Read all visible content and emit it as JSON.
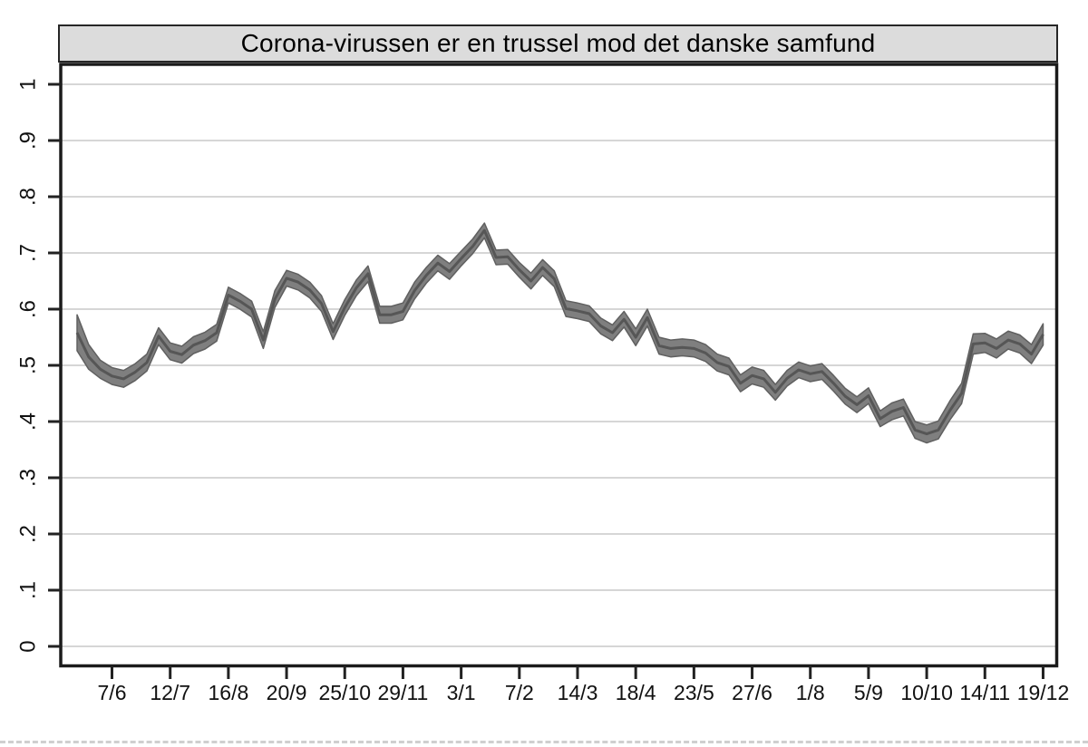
{
  "chart_data": {
    "type": "line",
    "title": "Corona-virussen er en trussel mod det danske samfund",
    "subtitle": "",
    "n_points": 84,
    "x_tick_indices": [
      3,
      8,
      13,
      18,
      23,
      28,
      33,
      38,
      43,
      48,
      53,
      58,
      63,
      68,
      73,
      78,
      83
    ],
    "x_tick_labels": [
      "7/6",
      "12/7",
      "16/8",
      "20/9",
      "25/10",
      "29/11",
      "3/1",
      "7/2",
      "14/3",
      "18/4",
      "23/5",
      "27/6",
      "1/8",
      "5/9",
      "10/10",
      "14/11",
      "19/12"
    ],
    "y_tick_labels": [
      "0",
      ".1",
      ".2",
      ".3",
      ".4",
      ".5",
      ".6",
      ".7",
      ".8",
      ".9",
      "1"
    ],
    "y_tick_values": [
      0,
      0.1,
      0.2,
      0.3,
      0.4,
      0.5,
      0.6,
      0.7,
      0.8,
      0.9,
      1
    ],
    "ylim": [
      0,
      1
    ],
    "grid": "horizontal",
    "legend": "none",
    "series": [
      {
        "name": "point-estimate",
        "values": [
          0.558,
          0.515,
          0.493,
          0.481,
          0.476,
          0.488,
          0.505,
          0.552,
          0.525,
          0.519,
          0.536,
          0.544,
          0.558,
          0.625,
          0.614,
          0.6,
          0.545,
          0.618,
          0.655,
          0.648,
          0.634,
          0.61,
          0.56,
          0.603,
          0.638,
          0.663,
          0.59,
          0.59,
          0.596,
          0.633,
          0.66,
          0.682,
          0.667,
          0.69,
          0.712,
          0.74,
          0.692,
          0.693,
          0.67,
          0.65,
          0.674,
          0.654,
          0.601,
          0.597,
          0.592,
          0.57,
          0.558,
          0.582,
          0.55,
          0.585,
          0.535,
          0.53,
          0.532,
          0.53,
          0.522,
          0.505,
          0.498,
          0.468,
          0.482,
          0.476,
          0.452,
          0.477,
          0.492,
          0.485,
          0.489,
          0.468,
          0.445,
          0.43,
          0.446,
          0.405,
          0.418,
          0.425,
          0.385,
          0.378,
          0.385,
          0.42,
          0.45,
          0.538,
          0.54,
          0.53,
          0.545,
          0.538,
          0.52,
          0.555
        ]
      },
      {
        "name": "confidence-band-halfwidth",
        "values": [
          0.032,
          0.022,
          0.016,
          0.015,
          0.015,
          0.015,
          0.015,
          0.015,
          0.015,
          0.015,
          0.015,
          0.015,
          0.015,
          0.014,
          0.014,
          0.014,
          0.015,
          0.015,
          0.014,
          0.014,
          0.014,
          0.014,
          0.014,
          0.014,
          0.014,
          0.014,
          0.015,
          0.015,
          0.015,
          0.015,
          0.014,
          0.014,
          0.014,
          0.013,
          0.013,
          0.013,
          0.013,
          0.013,
          0.013,
          0.014,
          0.014,
          0.014,
          0.014,
          0.014,
          0.014,
          0.014,
          0.014,
          0.014,
          0.015,
          0.015,
          0.015,
          0.015,
          0.015,
          0.015,
          0.015,
          0.015,
          0.015,
          0.015,
          0.015,
          0.015,
          0.014,
          0.014,
          0.014,
          0.014,
          0.014,
          0.014,
          0.014,
          0.014,
          0.014,
          0.014,
          0.015,
          0.015,
          0.015,
          0.016,
          0.016,
          0.017,
          0.018,
          0.018,
          0.017,
          0.017,
          0.016,
          0.016,
          0.017,
          0.019
        ]
      }
    ],
    "band_color": "#7f7f7f",
    "band_edge_color": "#606060",
    "line_color": "#565656",
    "grid_color": "#d6d6d6",
    "frame_color": "#1b1b1b",
    "tick_color": "#222222",
    "tick_label_color": "#111111",
    "title_box_fill": "#dcdcdc",
    "title_box_border": "#262626"
  }
}
